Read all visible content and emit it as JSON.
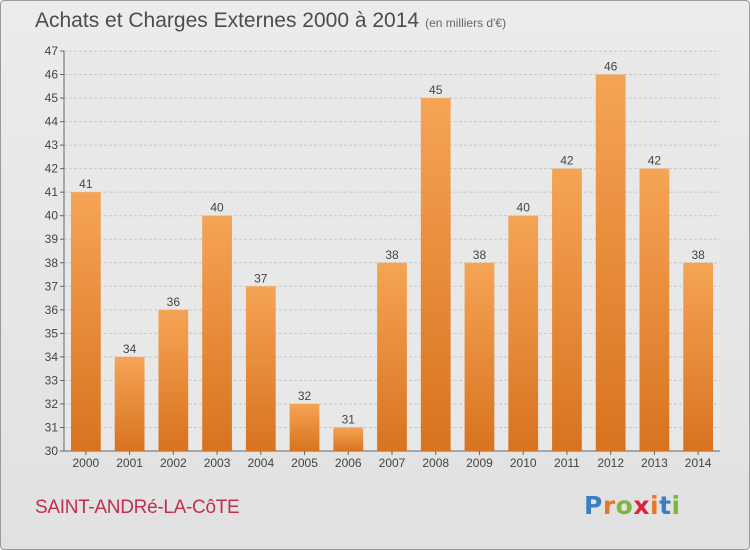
{
  "header": {
    "title": "Achats et Charges Externes 2000 à 2014",
    "subtitle": "(en milliers d'€)"
  },
  "footer": {
    "commune": "SAINT-ANDRé-LA-CôTE",
    "logo_letters": [
      "P",
      "r",
      "o",
      "x",
      "i",
      "t",
      "i"
    ],
    "logo_colors": [
      "#3a7fc4",
      "#e8762b",
      "#7cb73f",
      "#d7263d",
      "#e8762b",
      "#3a7fc4",
      "#7cb73f"
    ]
  },
  "colors": {
    "bar_light": "#f5a455",
    "bar_dark": "#d8731f",
    "grid": "#c8c8c8",
    "axis": "#666666",
    "text": "#444444"
  },
  "chart_data": {
    "type": "bar",
    "title": "Achats et Charges Externes 2000 à 2014",
    "subtitle": "(en milliers d'€)",
    "xlabel": "",
    "ylabel": "",
    "categories": [
      "2000",
      "2001",
      "2002",
      "2003",
      "2004",
      "2005",
      "2006",
      "2007",
      "2008",
      "2009",
      "2010",
      "2011",
      "2012",
      "2013",
      "2014"
    ],
    "values": [
      41,
      34,
      36,
      40,
      37,
      32,
      31,
      38,
      45,
      38,
      40,
      42,
      46,
      42,
      38
    ],
    "ylim": [
      30,
      47
    ],
    "yticks": [
      30,
      31,
      32,
      33,
      34,
      35,
      36,
      37,
      38,
      39,
      40,
      41,
      42,
      43,
      44,
      45,
      46,
      47
    ],
    "grid": true,
    "legend": "none"
  }
}
